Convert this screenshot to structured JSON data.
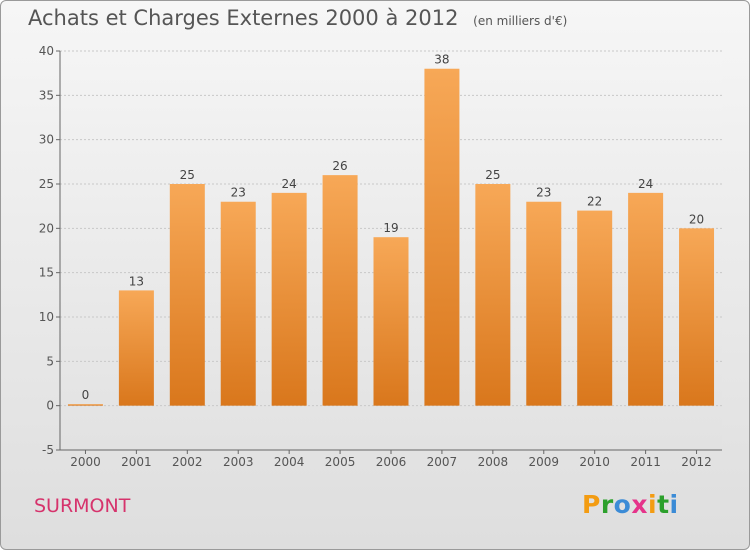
{
  "title": "Achats et Charges Externes 2000 à 2012",
  "subtitle": "(en milliers d'€)",
  "footer": {
    "city": "SURMONT",
    "brand": "Proxiti",
    "brand_letters": [
      "P",
      "r",
      "o",
      "x",
      "i",
      "t",
      "i"
    ],
    "brand_colors": [
      "#f39c12",
      "#2ca02c",
      "#3b8bd6",
      "#e5338a",
      "#f39c12",
      "#2ca02c",
      "#3b8bd6"
    ]
  },
  "chart_data": {
    "type": "bar",
    "categories": [
      "2000",
      "2001",
      "2002",
      "2003",
      "2004",
      "2005",
      "2006",
      "2007",
      "2008",
      "2009",
      "2010",
      "2011",
      "2012"
    ],
    "values": [
      0,
      13,
      25,
      23,
      24,
      26,
      19,
      38,
      25,
      23,
      22,
      24,
      20
    ],
    "ylim": [
      -5,
      40
    ],
    "yticks": [
      -5,
      0,
      5,
      10,
      15,
      20,
      25,
      30,
      35,
      40
    ],
    "bar_color": "#f0923a",
    "grid": true
  }
}
